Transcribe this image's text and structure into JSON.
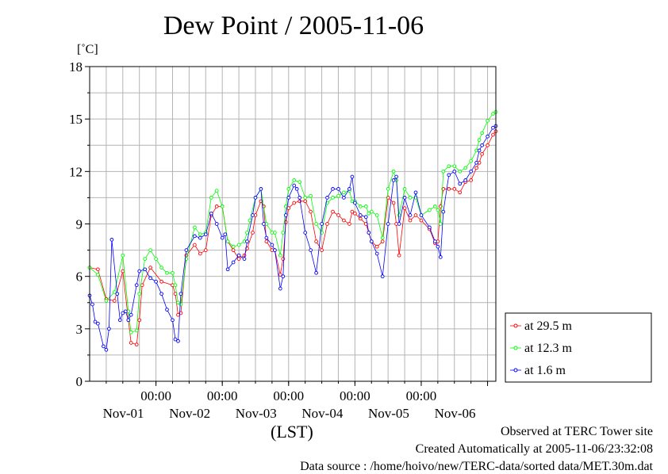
{
  "chart_data": {
    "type": "line",
    "title": "Dew Point / 2005-11-06",
    "ylabel": "[˚C]",
    "xlabel": "(LST)",
    "ylim": [
      0,
      18
    ],
    "yticks": [
      0,
      3,
      6,
      9,
      12,
      15,
      18
    ],
    "xlim_hours": [
      0,
      147
    ],
    "xticks": [
      {
        "hour": 24,
        "time": "00:00",
        "date": "Nov-01"
      },
      {
        "hour": 48,
        "time": "00:00",
        "date": "Nov-02"
      },
      {
        "hour": 72,
        "time": "00:00",
        "date": "Nov-03"
      },
      {
        "hour": 96,
        "time": "00:00",
        "date": "Nov-04"
      },
      {
        "hour": 120,
        "time": "00:00",
        "date": "Nov-05"
      },
      {
        "hour": 144,
        "time": "",
        "date": "Nov-06"
      }
    ],
    "grid": true,
    "legend_position": "right",
    "series": [
      {
        "name": "at 29.5 m",
        "color": "#ff0000",
        "x": [
          0,
          3,
          6,
          9,
          12,
          14,
          15,
          17,
          18,
          19,
          22,
          26,
          30,
          31,
          32,
          33,
          35,
          38,
          40,
          42,
          44,
          46,
          48,
          50,
          52,
          54,
          56,
          57,
          59,
          60,
          62,
          63,
          64,
          66,
          67,
          69,
          70,
          71,
          72,
          74,
          76,
          78,
          80,
          82,
          84,
          86,
          88,
          90,
          92,
          94,
          95,
          96,
          98,
          100,
          101,
          102,
          104,
          106,
          108,
          110,
          111,
          112,
          114,
          116,
          118,
          120,
          123,
          125,
          126,
          127,
          128,
          130,
          132,
          134,
          136,
          138,
          140,
          141,
          142,
          144,
          146,
          147
        ],
        "y": [
          6.5,
          6.4,
          4.7,
          4.6,
          6.3,
          3.5,
          2.2,
          2.1,
          3.5,
          5.5,
          6.5,
          5.7,
          5.5,
          5.0,
          3.8,
          3.9,
          7.2,
          7.8,
          7.3,
          7.5,
          9.5,
          10.0,
          10.0,
          8.0,
          7.5,
          7.0,
          7.2,
          7.6,
          8.5,
          9.5,
          10.3,
          10.0,
          8.0,
          7.5,
          7.5,
          6.1,
          7.0,
          9.1,
          9.9,
          10.2,
          10.3,
          10.3,
          9.7,
          8.0,
          7.5,
          9.0,
          9.7,
          9.5,
          9.2,
          9.0,
          9.7,
          9.6,
          9.3,
          9.0,
          8.5,
          8.0,
          7.7,
          8.0,
          10.5,
          10.2,
          9.0,
          7.2,
          9.9,
          9.2,
          9.5,
          9.2,
          8.7,
          7.9,
          8.0,
          10.0,
          11.0,
          11.0,
          11.0,
          10.8,
          11.4,
          11.5,
          12.2,
          12.5,
          13.0,
          13.5,
          14.1,
          14.3
        ]
      },
      {
        "name": "at 12.3 m",
        "color": "#00ff00",
        "x": [
          0,
          3,
          6,
          9,
          12,
          14,
          15,
          17,
          18,
          20,
          22,
          24,
          26,
          28,
          30,
          31,
          32,
          33,
          35,
          38,
          40,
          42,
          44,
          46,
          48,
          50,
          52,
          54,
          56,
          57,
          58,
          60,
          62,
          64,
          66,
          67,
          69,
          70,
          71,
          72,
          74,
          76,
          78,
          80,
          82,
          84,
          86,
          88,
          90,
          92,
          94,
          95,
          96,
          98,
          100,
          101,
          102,
          104,
          106,
          108,
          110,
          111,
          112,
          114,
          116,
          118,
          120,
          123,
          125,
          126,
          127,
          128,
          130,
          132,
          134,
          136,
          138,
          140,
          141,
          142,
          144,
          146,
          147
        ],
        "y": [
          6.5,
          6.1,
          4.6,
          5.1,
          7.2,
          4.0,
          2.8,
          2.9,
          5.0,
          7.0,
          7.5,
          7.0,
          6.5,
          6.2,
          6.2,
          5.5,
          4.5,
          4.4,
          7.0,
          8.8,
          8.4,
          8.5,
          10.5,
          10.9,
          10.0,
          8.0,
          7.7,
          7.8,
          8.0,
          8.5,
          9.2,
          10.5,
          11.0,
          9.0,
          8.5,
          8.5,
          7.2,
          8.5,
          10.0,
          11.0,
          11.5,
          11.4,
          10.5,
          10.6,
          9.0,
          8.5,
          10.2,
          10.5,
          10.6,
          10.8,
          10.9,
          10.3,
          10.3,
          10.0,
          10.0,
          9.6,
          9.7,
          9.5,
          8.2,
          11.0,
          12.0,
          11.5,
          9.5,
          11.0,
          10.5,
          10.5,
          9.5,
          9.8,
          10.0,
          9.8,
          9.0,
          12.0,
          12.3,
          12.3,
          12.0,
          12.2,
          12.6,
          13.2,
          13.8,
          14.2,
          14.9,
          15.3,
          15.4
        ]
      },
      {
        "name": "at 1.6 m",
        "color": "#0000ff",
        "x": [
          0,
          1,
          2,
          3,
          5,
          6,
          7,
          8,
          10,
          11,
          12,
          13,
          14,
          15,
          17,
          18,
          20,
          22,
          24,
          26,
          28,
          30,
          31,
          32,
          33,
          35,
          38,
          40,
          42,
          44,
          46,
          48,
          49,
          50,
          52,
          54,
          56,
          57,
          59,
          60,
          62,
          63,
          64,
          66,
          67,
          69,
          70,
          71,
          72,
          74,
          75,
          76,
          78,
          80,
          82,
          84,
          86,
          88,
          90,
          92,
          94,
          95,
          96,
          98,
          100,
          101,
          102,
          104,
          106,
          108,
          110,
          111,
          112,
          114,
          116,
          118,
          120,
          123,
          125,
          126,
          127,
          128,
          130,
          132,
          134,
          136,
          138,
          140,
          141,
          142,
          144,
          146,
          147
        ],
        "y": [
          4.9,
          4.4,
          3.4,
          3.3,
          2.0,
          1.8,
          3.0,
          8.1,
          5.0,
          3.5,
          3.9,
          4.0,
          3.5,
          3.8,
          5.5,
          6.3,
          6.4,
          5.9,
          5.7,
          5.0,
          4.1,
          3.5,
          2.4,
          2.3,
          5.0,
          7.5,
          8.3,
          8.2,
          8.4,
          9.6,
          9.0,
          8.2,
          8.4,
          6.4,
          6.8,
          7.2,
          7.0,
          8.0,
          9.5,
          10.5,
          11.0,
          9.0,
          8.2,
          7.8,
          7.5,
          5.3,
          6.0,
          9.5,
          10.5,
          11.2,
          11.0,
          10.5,
          8.5,
          7.5,
          6.2,
          9.0,
          10.5,
          11.0,
          11.0,
          10.5,
          11.0,
          11.7,
          10.2,
          9.5,
          9.4,
          8.5,
          8.0,
          7.3,
          6.0,
          9.0,
          11.5,
          11.7,
          9.0,
          10.5,
          9.5,
          10.8,
          9.5,
          8.8,
          8.0,
          7.7,
          7.1,
          9.7,
          11.8,
          12.0,
          11.3,
          11.5,
          12.0,
          12.5,
          13.2,
          13.5,
          14.0,
          14.5,
          14.6
        ]
      }
    ]
  },
  "footer": {
    "line1": "Observed at TERC Tower site",
    "line2": "Created Automatically at 2005-11-06/23:32:08",
    "line3": "Data source : /home/hoivo/new/TERC-data/sorted  data/MET.30m.dat"
  }
}
